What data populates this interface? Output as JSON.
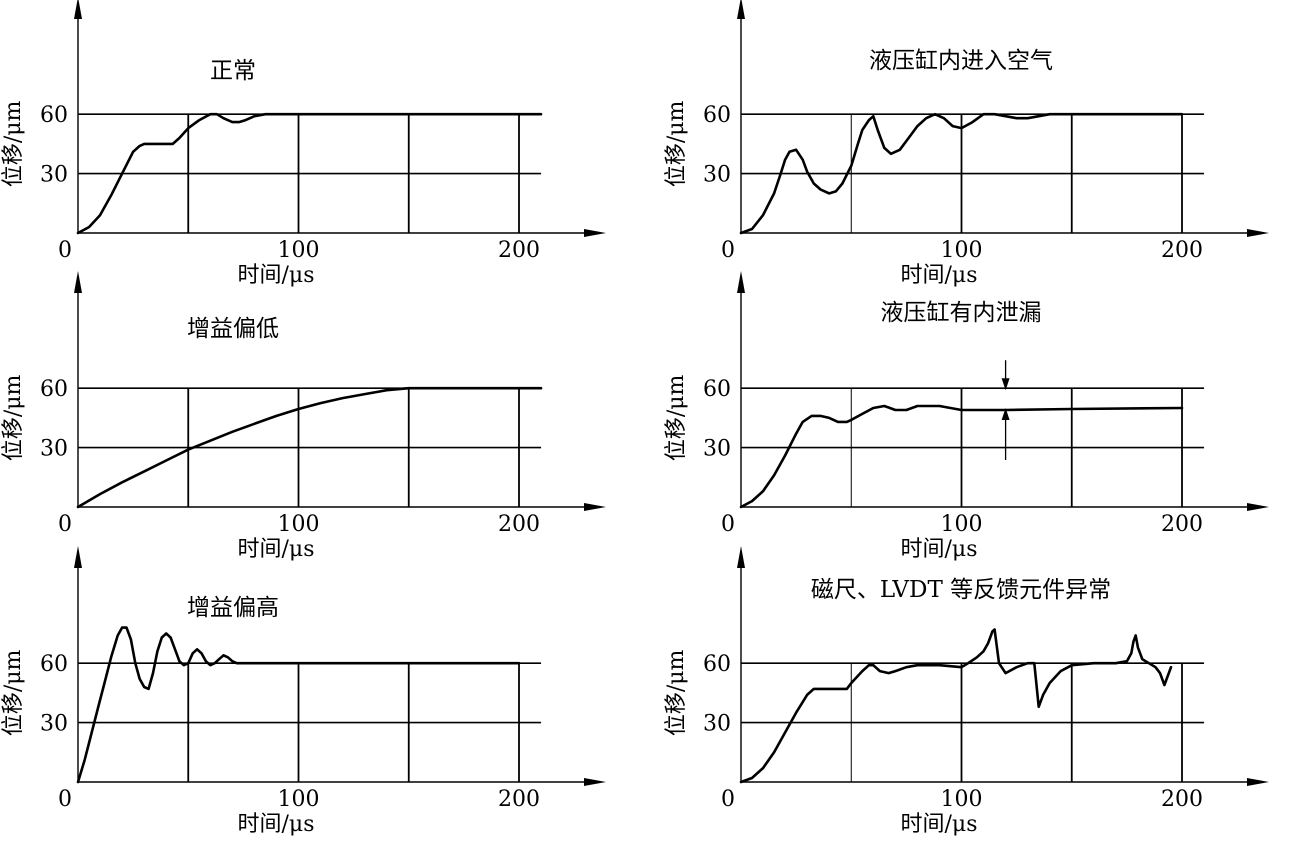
{
  "figure": {
    "x_ticks": [
      "0",
      "100",
      "200"
    ],
    "y_ticks": [
      "30",
      "60"
    ],
    "xlabel": "时间/μs",
    "ylabel": "位移/μm"
  },
  "chart_data": [
    {
      "type": "line",
      "title": "正常",
      "xlabel": "时间/μs",
      "ylabel": "位移/μm",
      "xlim": [
        0,
        235
      ],
      "ylim": [
        0,
        115
      ],
      "x_ticks": [
        0,
        100,
        200
      ],
      "y_ticks": [
        30,
        60
      ],
      "vgrid": [
        {
          "x": 50,
          "weight": "bold"
        },
        {
          "x": 100,
          "weight": "bold"
        },
        {
          "x": 150,
          "weight": "bold"
        },
        {
          "x": 200,
          "weight": "bold"
        }
      ],
      "hgrid": [
        30,
        60
      ],
      "grid_xmax": 210,
      "series": [
        {
          "x": [
            0,
            5,
            10,
            15,
            20,
            25,
            28,
            30,
            35,
            40,
            43,
            46,
            50,
            55,
            60,
            63,
            66,
            70,
            73,
            76,
            80,
            85,
            90,
            100,
            120,
            150,
            180,
            210
          ],
          "y": [
            0,
            3,
            9,
            19,
            30,
            41,
            44,
            45,
            45,
            45,
            45,
            48,
            53,
            57,
            60,
            60,
            58,
            56,
            56,
            57,
            59,
            60,
            60,
            60,
            60,
            60,
            60,
            60
          ]
        }
      ]
    },
    {
      "type": "line",
      "title": "液压缸内进入空气",
      "xlabel": "时间/μs",
      "ylabel": "位移/μm",
      "xlim": [
        0,
        235
      ],
      "ylim": [
        0,
        115
      ],
      "x_ticks": [
        0,
        100,
        200
      ],
      "y_ticks": [
        30,
        60
      ],
      "vgrid": [
        {
          "x": 50,
          "weight": "thin"
        },
        {
          "x": 100,
          "weight": "bold"
        },
        {
          "x": 150,
          "weight": "bold"
        },
        {
          "x": 200,
          "weight": "bold"
        }
      ],
      "hgrid": [
        30,
        60
      ],
      "grid_xmax": 210,
      "series": [
        {
          "x": [
            0,
            5,
            10,
            15,
            18,
            20,
            22,
            25,
            28,
            30,
            33,
            36,
            40,
            43,
            46,
            50,
            53,
            55,
            58,
            60,
            62,
            65,
            68,
            72,
            76,
            80,
            84,
            88,
            92,
            96,
            100,
            105,
            110,
            115,
            120,
            125,
            130,
            140,
            150,
            170,
            200
          ],
          "y": [
            0,
            2,
            9,
            20,
            30,
            37,
            41,
            42,
            37,
            31,
            25,
            22,
            20,
            21,
            25,
            34,
            45,
            52,
            57,
            59,
            52,
            43,
            40,
            42,
            48,
            54,
            58,
            60,
            58,
            54,
            53,
            56,
            60,
            60,
            59,
            58,
            58,
            60,
            60,
            60,
            60
          ]
        }
      ]
    },
    {
      "type": "line",
      "title": "增益偏低",
      "xlabel": "时间/μs",
      "ylabel": "位移/μm",
      "xlim": [
        0,
        235
      ],
      "ylim": [
        0,
        115
      ],
      "x_ticks": [
        0,
        100,
        200
      ],
      "y_ticks": [
        30,
        60
      ],
      "vgrid": [
        {
          "x": 50,
          "weight": "bold"
        },
        {
          "x": 100,
          "weight": "bold"
        },
        {
          "x": 150,
          "weight": "bold"
        },
        {
          "x": 200,
          "weight": "bold"
        }
      ],
      "hgrid": [
        30,
        60
      ],
      "grid_xmax": 210,
      "series": [
        {
          "x": [
            0,
            10,
            20,
            30,
            40,
            50,
            60,
            70,
            80,
            90,
            100,
            110,
            120,
            130,
            140,
            150,
            180,
            210
          ],
          "y": [
            0,
            6.5,
            12.5,
            18,
            23.5,
            29,
            33.5,
            38,
            42,
            46,
            49.5,
            52.5,
            55,
            57,
            59,
            60,
            60,
            60
          ]
        }
      ]
    },
    {
      "type": "line",
      "title": "液压缸有内泄漏",
      "xlabel": "时间/μs",
      "ylabel": "位移/μm",
      "xlim": [
        0,
        235
      ],
      "ylim": [
        0,
        115
      ],
      "x_ticks": [
        0,
        100,
        200
      ],
      "y_ticks": [
        30,
        60
      ],
      "vgrid": [
        {
          "x": 50,
          "weight": "thin"
        },
        {
          "x": 100,
          "weight": "bold"
        },
        {
          "x": 150,
          "weight": "bold"
        },
        {
          "x": 200,
          "weight": "bold"
        }
      ],
      "hgrid": [
        30,
        60
      ],
      "grid_xmax": 210,
      "series": [
        {
          "x": [
            0,
            5,
            10,
            15,
            20,
            25,
            28,
            32,
            36,
            40,
            44,
            48,
            50,
            55,
            60,
            65,
            70,
            75,
            80,
            85,
            90,
            95,
            100,
            120,
            150,
            200
          ],
          "y": [
            0,
            3,
            8,
            16,
            26,
            37,
            43,
            46,
            46,
            45,
            43,
            43,
            44,
            47,
            50,
            51,
            49,
            49,
            51,
            51,
            51,
            50,
            49,
            49,
            49.5,
            50
          ]
        }
      ],
      "annotation": {
        "x": 120,
        "y_top": 60,
        "y_bottom": 49
      }
    },
    {
      "type": "line",
      "title": "增益偏高",
      "xlabel": "时间/μs",
      "ylabel": "位移/μm",
      "xlim": [
        0,
        235
      ],
      "ylim": [
        0,
        115
      ],
      "x_ticks": [
        0,
        100,
        200
      ],
      "y_ticks": [
        30,
        60
      ],
      "vgrid": [
        {
          "x": 50,
          "weight": "bold"
        },
        {
          "x": 100,
          "weight": "bold"
        },
        {
          "x": 150,
          "weight": "bold"
        },
        {
          "x": 200,
          "weight": "bold"
        }
      ],
      "hgrid": [
        30,
        60
      ],
      "grid_xmax": 210,
      "series": [
        {
          "x": [
            0,
            3,
            6,
            9,
            12,
            15,
            18,
            20,
            22,
            24,
            26,
            28,
            30,
            32,
            34,
            36,
            38,
            40,
            42,
            44,
            46,
            48,
            50,
            52,
            54,
            56,
            58,
            60,
            62,
            64,
            66,
            68,
            70,
            72,
            75,
            80,
            100,
            150,
            200
          ],
          "y": [
            0,
            11,
            24,
            37,
            50,
            63,
            74,
            78,
            78,
            72,
            60,
            52,
            48,
            47,
            55,
            66,
            73,
            75,
            73,
            67,
            61,
            59,
            60,
            65,
            67,
            65,
            61,
            59,
            60,
            62,
            64,
            63,
            61,
            60,
            60,
            60,
            60,
            60,
            60
          ]
        }
      ]
    },
    {
      "type": "line",
      "title": "磁尺、LVDT 等反馈元件异常",
      "xlabel": "时间/μs",
      "ylabel": "位移/μm",
      "xlim": [
        0,
        235
      ],
      "ylim": [
        0,
        115
      ],
      "x_ticks": [
        0,
        100,
        200
      ],
      "y_ticks": [
        30,
        60
      ],
      "vgrid": [
        {
          "x": 50,
          "weight": "thin"
        },
        {
          "x": 100,
          "weight": "bold"
        },
        {
          "x": 150,
          "weight": "bold"
        },
        {
          "x": 200,
          "weight": "bold"
        }
      ],
      "hgrid": [
        30,
        60
      ],
      "grid_xmax": 210,
      "series": [
        {
          "x": [
            0,
            5,
            10,
            15,
            20,
            25,
            30,
            33,
            35,
            40,
            45,
            48,
            50,
            55,
            58,
            60,
            63,
            67,
            70,
            75,
            80,
            90,
            100,
            103,
            107,
            110,
            112,
            113,
            114,
            115,
            117,
            120,
            125,
            130,
            133,
            135,
            137,
            140,
            145,
            150,
            160,
            170,
            175,
            177,
            178,
            179,
            180,
            182,
            185,
            188,
            190,
            192,
            195
          ],
          "y": [
            0,
            2,
            7,
            15,
            25,
            35,
            44,
            47,
            47,
            47,
            47,
            47,
            50,
            56,
            59,
            59,
            56,
            55,
            56,
            58,
            59,
            59,
            58,
            60,
            63,
            66,
            70,
            73,
            76,
            77,
            60,
            55,
            58,
            60,
            60,
            38,
            44,
            50,
            56,
            59,
            60,
            60,
            61,
            65,
            71,
            74,
            68,
            62,
            60,
            58,
            55,
            49,
            58
          ]
        }
      ]
    }
  ]
}
